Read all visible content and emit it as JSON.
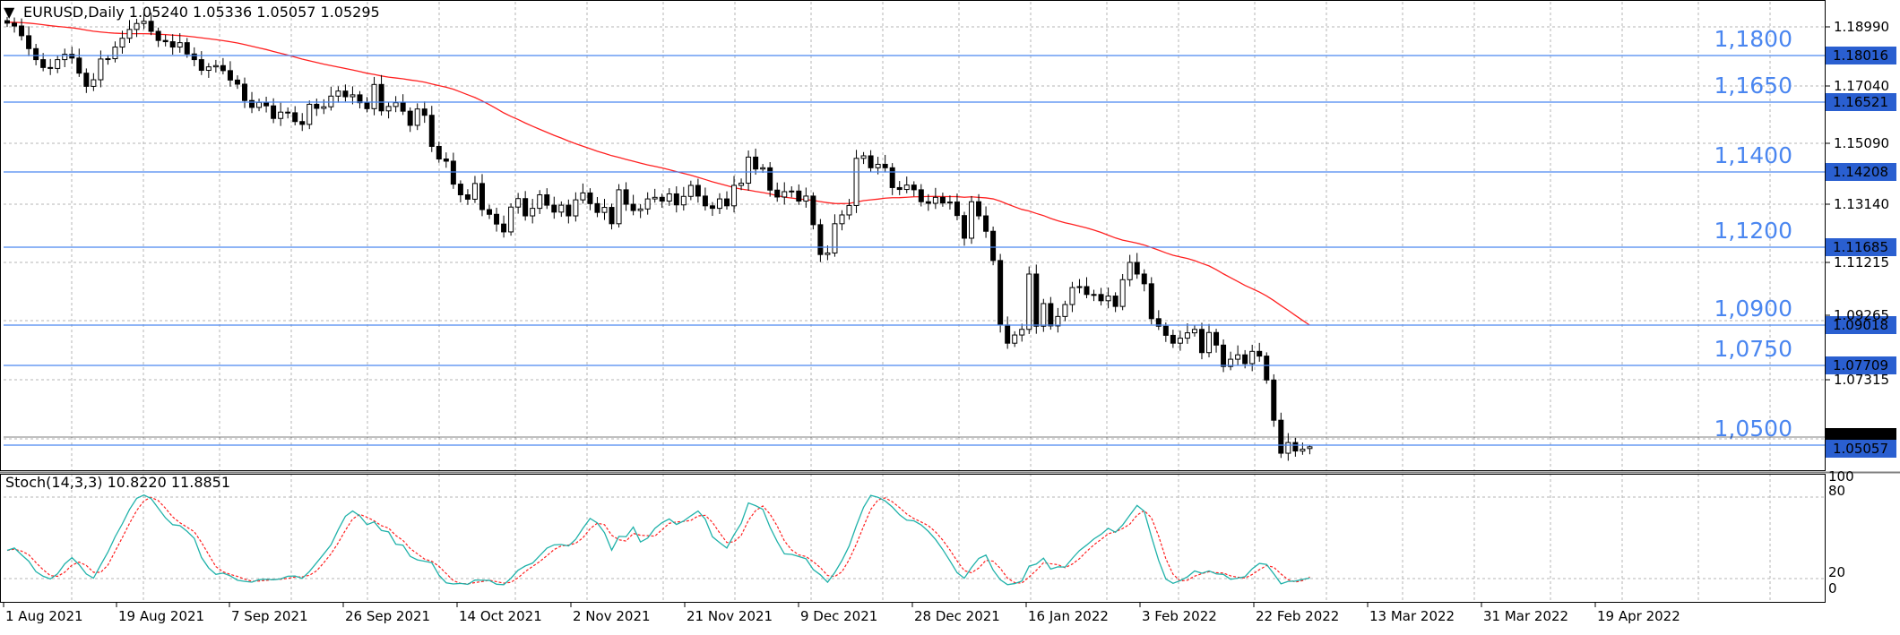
{
  "header": {
    "menu_glyph": "▼",
    "symbol_info": "EURUSD,Daily  1.05240 1.05336 1.05057 1.05295"
  },
  "indicator_header": "Stoch(14,3,3) 10.8220 11.8851",
  "colors": {
    "background": "#ffffff",
    "grid": "#b4b4b4",
    "level_line": "#4a86f0",
    "level_label": "#4a86f0",
    "ma_line": "#ff2020",
    "stoch_main": "#20b2aa",
    "stoch_signal": "#ff2020",
    "candle_bear": "#000000",
    "candle_bull": "#ffffff",
    "current_price_box": "#000000",
    "bid_box": "#2a5fd0"
  },
  "price_axis_labels": [
    "1.18990",
    "1.17040",
    "1.15090",
    "1.13140",
    "1.11215",
    "1.09265",
    "1.07315"
  ],
  "level_lines": [
    {
      "level": "1,1800",
      "tag": "1.18016"
    },
    {
      "level": "1,1650",
      "tag": "1.16521"
    },
    {
      "level": "1,1400",
      "tag": "1.14208"
    },
    {
      "level": "1,1200",
      "tag": "1.11685"
    },
    {
      "level": "1,0900",
      "tag": "1.09018"
    },
    {
      "level": "1,0750",
      "tag": "1.07709"
    },
    {
      "level": "1,0500",
      "tag": "1.05057"
    }
  ],
  "current_price_tag": "1.05295",
  "stoch_axis_labels": [
    "100",
    "80",
    "20",
    "0"
  ],
  "date_labels": [
    "1 Aug 2021",
    "19 Aug 2021",
    "7 Sep 2021",
    "26 Sep 2021",
    "14 Oct 2021",
    "2 Nov 2021",
    "21 Nov 2021",
    "9 Dec 2021",
    "28 Dec 2021",
    "16 Jan 2022",
    "3 Feb 2022",
    "22 Feb 2022",
    "13 Mar 2022",
    "31 Mar 2022",
    "19 Apr 2022"
  ],
  "chart_data": {
    "type": "candlestick",
    "symbol": "EURUSD",
    "timeframe": "Daily",
    "last_bar": {
      "open": 1.0524,
      "high": 1.05336,
      "low": 1.05057,
      "close": 1.05295
    },
    "y_range": [
      1.0455,
      1.1945
    ],
    "closes": [
      1.1877,
      1.1868,
      1.1837,
      1.1796,
      1.1761,
      1.1736,
      1.1733,
      1.1761,
      1.1778,
      1.1766,
      1.1718,
      1.1676,
      1.1697,
      1.1763,
      1.1764,
      1.1801,
      1.1829,
      1.1857,
      1.1876,
      1.1883,
      1.1851,
      1.1822,
      1.1818,
      1.1801,
      1.1815,
      1.1779,
      1.1761,
      1.1727,
      1.1738,
      1.1742,
      1.1726,
      1.1696,
      1.1683,
      1.1631,
      1.1609,
      1.1625,
      1.1614,
      1.1574,
      1.1594,
      1.1592,
      1.1564,
      1.1555,
      1.1619,
      1.1606,
      1.1611,
      1.1645,
      1.1661,
      1.1643,
      1.1649,
      1.1624,
      1.1605,
      1.1682,
      1.1598,
      1.1612,
      1.1624,
      1.1597,
      1.1552,
      1.1604,
      1.1584,
      1.1485,
      1.1445,
      1.1438,
      1.1365,
      1.1331,
      1.1317,
      1.1367,
      1.1284,
      1.1269,
      1.1238,
      1.1213,
      1.1292,
      1.1319,
      1.1264,
      1.1288,
      1.1331,
      1.1298,
      1.1276,
      1.1298,
      1.1264,
      1.1315,
      1.1337,
      1.1303,
      1.1275,
      1.1291,
      1.1239,
      1.1347,
      1.1301,
      1.1281,
      1.1286,
      1.1318,
      1.1323,
      1.1311,
      1.1334,
      1.1299,
      1.1326,
      1.1361,
      1.1327,
      1.1296,
      1.1288,
      1.1318,
      1.1296,
      1.1361,
      1.1368,
      1.1451,
      1.1413,
      1.1417,
      1.1346,
      1.1324,
      1.1341,
      1.1343,
      1.1311,
      1.1327,
      1.1236,
      1.1141,
      1.1146,
      1.1239,
      1.1267,
      1.1297,
      1.1447,
      1.1455,
      1.1417,
      1.1428,
      1.1417,
      1.1354,
      1.1348,
      1.1362,
      1.1347,
      1.1309,
      1.1304,
      1.1323,
      1.1305,
      1.1308,
      1.1265,
      1.1193,
      1.1309,
      1.1264,
      1.1215,
      1.1122,
      1.0917,
      1.0859,
      1.0885,
      1.0903,
      1.1079,
      1.0913,
      1.0985,
      1.0914,
      1.0944,
      1.0982,
      1.1036,
      1.1039,
      1.1014,
      1.1014,
      1.0994,
      1.1009,
      1.0976,
      1.1061,
      1.1116,
      1.1079,
      1.1048,
      1.0937,
      1.0913,
      1.0884,
      1.0859,
      1.0875,
      1.0892,
      1.0903,
      1.0829,
      1.0893,
      1.0853,
      1.0785,
      1.0808,
      1.0822,
      1.0794,
      1.0833,
      1.0818,
      1.0742,
      1.0614,
      1.0509,
      1.0543,
      1.0516,
      1.0522,
      1.05295
    ],
    "series": [
      {
        "name": "Stoch(14,3,3)",
        "last": 10.822
      },
      {
        "name": "signal",
        "last": 11.8851
      }
    ],
    "stoch_range": [
      0,
      100
    ],
    "stoch_levels": [
      20,
      80
    ],
    "x_tick_labels": [
      "1 Aug 2021",
      "19 Aug 2021",
      "7 Sep 2021",
      "26 Sep 2021",
      "14 Oct 2021",
      "2 Nov 2021",
      "21 Nov 2021",
      "9 Dec 2021",
      "28 Dec 2021",
      "16 Jan 2022",
      "3 Feb 2022",
      "22 Feb 2022",
      "13 Mar 2022",
      "31 Mar 2022",
      "19 Apr 2022"
    ],
    "grid": true
  }
}
